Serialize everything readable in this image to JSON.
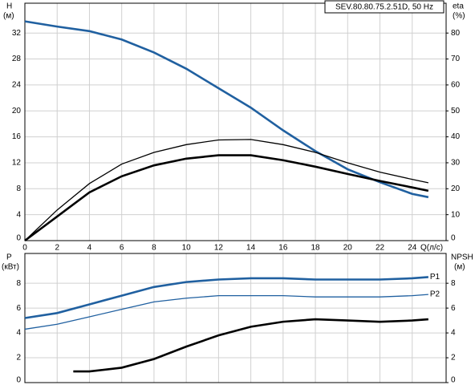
{
  "chart_data": [
    {
      "type": "line",
      "title": "SEV.80.80.75.2.51D, 50 Hz",
      "y_label": [
        "H",
        "(м)"
      ],
      "y2_label": [
        "eta",
        "(%)"
      ],
      "x_label": "Q(л/с)",
      "x": [
        0,
        2,
        4,
        6,
        8,
        10,
        12,
        14,
        16,
        18,
        20,
        22,
        24,
        25
      ],
      "xlim": [
        0,
        26.1
      ],
      "xticks": [
        0,
        2,
        4,
        6,
        8,
        10,
        12,
        14,
        16,
        18,
        20,
        22,
        24
      ],
      "ylim": [
        0,
        36.6
      ],
      "yticks": [
        0,
        4,
        8,
        12,
        16,
        20,
        24,
        28,
        32
      ],
      "y2lim": [
        0,
        91.5
      ],
      "y2ticks": [
        0,
        10,
        20,
        30,
        40,
        50,
        60,
        70,
        80
      ],
      "grid": true,
      "series": [
        {
          "color": "#2060a0",
          "width": 2,
          "values": [
            33.8,
            33,
            32.3,
            31,
            29,
            26.5,
            23.5,
            20.5,
            17,
            13.8,
            11,
            9,
            7.2,
            6.7
          ]
        },
        {
          "color": "#000000",
          "width": 1,
          "axis": "y2",
          "values": [
            0,
            11.8,
            22,
            29.5,
            34,
            37,
            38.8,
            39,
            37,
            34,
            30,
            26.4,
            23.6,
            22.3
          ]
        },
        {
          "color": "#000000",
          "width": 2,
          "axis": "y2",
          "values": [
            0,
            9.3,
            18.6,
            24.8,
            29,
            31.6,
            32.9,
            32.9,
            31,
            28.5,
            25.7,
            23,
            20.5,
            19.2
          ]
        }
      ]
    },
    {
      "type": "line",
      "y_label": [
        "P",
        "(кВт)"
      ],
      "y2_label": [
        "NPSH",
        "(м)"
      ],
      "x": [
        0,
        2,
        4,
        6,
        8,
        10,
        12,
        14,
        16,
        18,
        20,
        22,
        24,
        25
      ],
      "xlim": [
        0,
        26.1
      ],
      "xticks": [
        0,
        2,
        4,
        6,
        8,
        10,
        12,
        14,
        16,
        18,
        20,
        22,
        24
      ],
      "ylim": [
        0,
        10.4
      ],
      "yticks": [
        0,
        2,
        4,
        6,
        8
      ],
      "y2lim": [
        0,
        10.4
      ],
      "y2ticks": [
        0,
        2,
        4,
        6,
        8
      ],
      "grid": true,
      "series": [
        {
          "name": "P1",
          "color": "#2060a0",
          "width": 2,
          "values": [
            5.2,
            5.6,
            6.3,
            7.0,
            7.7,
            8.1,
            8.3,
            8.4,
            8.4,
            8.3,
            8.3,
            8.3,
            8.4,
            8.5
          ]
        },
        {
          "name": "P2",
          "color": "#2060a0",
          "width": 1,
          "values": [
            4.3,
            4.7,
            5.3,
            5.9,
            6.5,
            6.8,
            7.0,
            7.0,
            7.0,
            6.9,
            6.9,
            6.9,
            7.0,
            7.1
          ]
        },
        {
          "color": "#000000",
          "width": 2,
          "axis": "y2",
          "x": [
            3,
            4,
            6,
            8,
            10,
            12,
            14,
            16,
            18,
            20,
            22,
            24,
            25
          ],
          "values": [
            0.9,
            0.9,
            1.2,
            1.9,
            2.9,
            3.8,
            4.5,
            4.9,
            5.1,
            5.0,
            4.9,
            5.0,
            5.1
          ]
        }
      ]
    }
  ]
}
